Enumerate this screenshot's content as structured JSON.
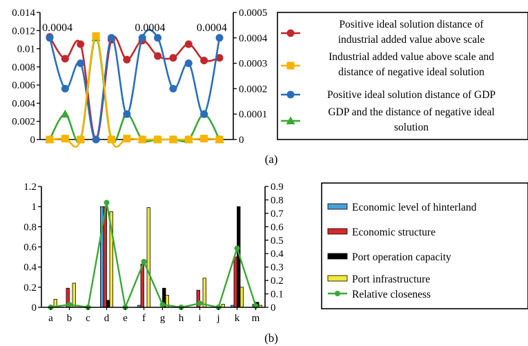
{
  "captions": {
    "a": "(a)",
    "b": "(b)"
  },
  "chart_data": [
    {
      "type": "line",
      "panel": "(a)",
      "x": [
        1,
        2,
        3,
        4,
        5,
        6,
        7,
        8,
        9,
        10,
        11,
        12
      ],
      "ylim_left": [
        0,
        0.014
      ],
      "yticks_left": [
        "0",
        "0.002",
        "0.004",
        "0.006",
        "0.008",
        "0.01",
        "0.012",
        "0.014"
      ],
      "ylim_right": [
        0,
        0.0005
      ],
      "yticks_right": [
        "0",
        "0.0001",
        "0.0002",
        "0.0003",
        "0.0004",
        "0.0005"
      ],
      "grid": false,
      "legend_position": "right",
      "annotations": [
        {
          "text": "0.0004",
          "x": 1.5
        },
        {
          "text": "0.0004",
          "x": 7.5
        },
        {
          "text": "0.0004",
          "x": 11.5
        }
      ],
      "series": [
        {
          "name": [
            "Positive ideal solution distance of",
            "industrial added value above scale"
          ],
          "color": "#c0282d",
          "marker": "circle",
          "axis": "left",
          "values": [
            0.0113,
            0.0089,
            0.0105,
            0.0,
            0.011,
            0.0088,
            0.0109,
            0.0092,
            0.009,
            0.0105,
            0.0087,
            0.009
          ]
        },
        {
          "name": [
            "Industrial added value above scale and",
            "distance of negative ideal solution"
          ],
          "color": "#f5b400",
          "marker": "square",
          "axis": "left",
          "values": [
            0.0,
            0.0001,
            0.0,
            0.0114,
            0.0,
            0.0001,
            0.0,
            0.0,
            0.0,
            0.0,
            0.0001,
            0.0
          ]
        },
        {
          "name": [
            "Positive ideal solution distance of GDP"
          ],
          "color": "#2a6ebb",
          "marker": "circle",
          "axis": "right",
          "values": [
            0.0004,
            0.0002,
            0.0003,
            0.0,
            0.0004,
            0.0001,
            0.0004,
            0.0004,
            0.0002,
            0.0003,
            0.0001,
            0.0004
          ]
        },
        {
          "name": [
            "GDP and the distance of negative ideal",
            "solution"
          ],
          "color": "#3aa836",
          "marker": "triangle",
          "axis": "right",
          "values": [
            0.0,
            0.0001,
            0.0,
            0.0004,
            0.0,
            0.0001,
            0.0,
            0.0,
            0.0,
            0.0,
            0.0001,
            0.0
          ]
        }
      ]
    },
    {
      "type": "bar",
      "panel": "(b)",
      "categories": [
        "a",
        "b",
        "c",
        "d",
        "e",
        "f",
        "g",
        "h",
        "i",
        "j",
        "k",
        "m"
      ],
      "ylim_left": [
        0,
        1.2
      ],
      "yticks_left": [
        "0",
        "0.2",
        "0.4",
        "0.6",
        "0.8",
        "1",
        "1.2"
      ],
      "ylim_right": [
        0,
        0.9
      ],
      "yticks_right": [
        "0",
        "0.1",
        "0.2",
        "0.3",
        "0.4",
        "0.5",
        "0.6",
        "0.7",
        "0.8",
        "0.9"
      ],
      "grid": false,
      "legend_position": "right",
      "series": [
        {
          "name": "Economic level of hinterland",
          "color": "#4a9fd9",
          "kind": "bar",
          "values": [
            0.0,
            0.0,
            0.0,
            1.0,
            0.0,
            0.02,
            0.0,
            0.0,
            0.0,
            0.0,
            0.02,
            0.0
          ]
        },
        {
          "name": "Economic structure",
          "color": "#d42a2a",
          "kind": "bar",
          "values": [
            0.0,
            0.19,
            0.0,
            1.0,
            0.0,
            0.43,
            0.0,
            0.0,
            0.17,
            0.0,
            0.5,
            0.03
          ]
        },
        {
          "name": "Port operation capacity",
          "color": "#000000",
          "kind": "bar",
          "values": [
            0.01,
            0.0,
            0.0,
            0.07,
            0.0,
            0.0,
            0.19,
            0.0,
            0.0,
            0.0,
            1.0,
            0.05
          ]
        },
        {
          "name": "Port infrastructure",
          "color": "#f0e83a",
          "kind": "bar",
          "values": [
            0.08,
            0.24,
            0.0,
            0.95,
            0.0,
            0.99,
            0.12,
            0.01,
            0.29,
            0.03,
            0.2,
            0.02
          ]
        },
        {
          "name": "Relative closeness",
          "color": "#3aa836",
          "kind": "line",
          "axis": "right",
          "values": [
            0.0,
            0.02,
            0.0,
            0.78,
            0.0,
            0.34,
            0.02,
            0.0,
            0.03,
            0.0,
            0.44,
            0.01
          ]
        }
      ]
    }
  ]
}
